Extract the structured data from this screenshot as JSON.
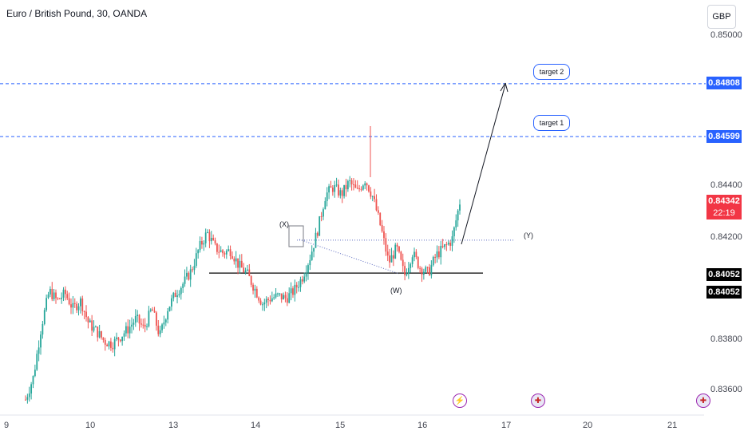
{
  "header": {
    "title": "Euro / British Pound, 30, OANDA",
    "currency": "GBP"
  },
  "price_axis": {
    "labels": [
      "0.85000",
      "0.84400",
      "0.84200",
      "0.83800",
      "0.83600"
    ],
    "tags": {
      "target2_price": "0.84808",
      "target1_price": "0.84599",
      "last_price": "0.84342",
      "countdown": "22:19",
      "close1": "0.84052",
      "close2": "0.84052"
    }
  },
  "time_axis": {
    "labels": [
      "9",
      "10",
      "13",
      "14",
      "15",
      "16",
      "17",
      "20",
      "21"
    ]
  },
  "annotations": {
    "target2": "target 2",
    "target1": "target 1",
    "wave_x": "(X)",
    "wave_w": "(W)",
    "wave_y": "(Y)"
  },
  "colors": {
    "up": "#26a69a",
    "down": "#ef5350",
    "accent": "#2962ff",
    "last_price": "#f23645",
    "event_purple": "#9c27b0"
  },
  "events": [
    "lightning-icon",
    "uk-flag-icon",
    "uk-flag-icon"
  ],
  "chart_data": {
    "type": "candlestick",
    "title": "Euro / British Pound, 30, OANDA",
    "ylim": [
      0.8353,
      0.851
    ],
    "x_ticks": [
      "9",
      "10",
      "13",
      "14",
      "15",
      "16",
      "17",
      "20",
      "21"
    ],
    "horizontal_levels": [
      {
        "name": "target 2",
        "value": 0.84808,
        "style": "dashed"
      },
      {
        "name": "target 1",
        "value": 0.84599,
        "style": "dashed"
      },
      {
        "name": "support",
        "value": 0.8406,
        "style": "solid"
      },
      {
        "name": "(Y) level",
        "value": 0.8419,
        "style": "dotted"
      }
    ],
    "last_price": 0.84342,
    "closes": [
      0.8356,
      0.8365,
      0.8385,
      0.8399,
      0.8395,
      0.8398,
      0.8392,
      0.8395,
      0.8386,
      0.8383,
      0.8379,
      0.8378,
      0.8381,
      0.8384,
      0.8388,
      0.8384,
      0.8392,
      0.8381,
      0.8392,
      0.8398,
      0.8402,
      0.8407,
      0.8416,
      0.8422,
      0.8416,
      0.8414,
      0.8415,
      0.8409,
      0.8406,
      0.84,
      0.8394,
      0.8396,
      0.8397,
      0.8396,
      0.8399,
      0.8404,
      0.8412,
      0.8423,
      0.8437,
      0.844,
      0.8437,
      0.8442,
      0.8438,
      0.8443,
      0.8436,
      0.8424,
      0.841,
      0.8416,
      0.8405,
      0.8414,
      0.8408,
      0.8406,
      0.8413,
      0.8416,
      0.8419,
      0.8434
    ]
  }
}
